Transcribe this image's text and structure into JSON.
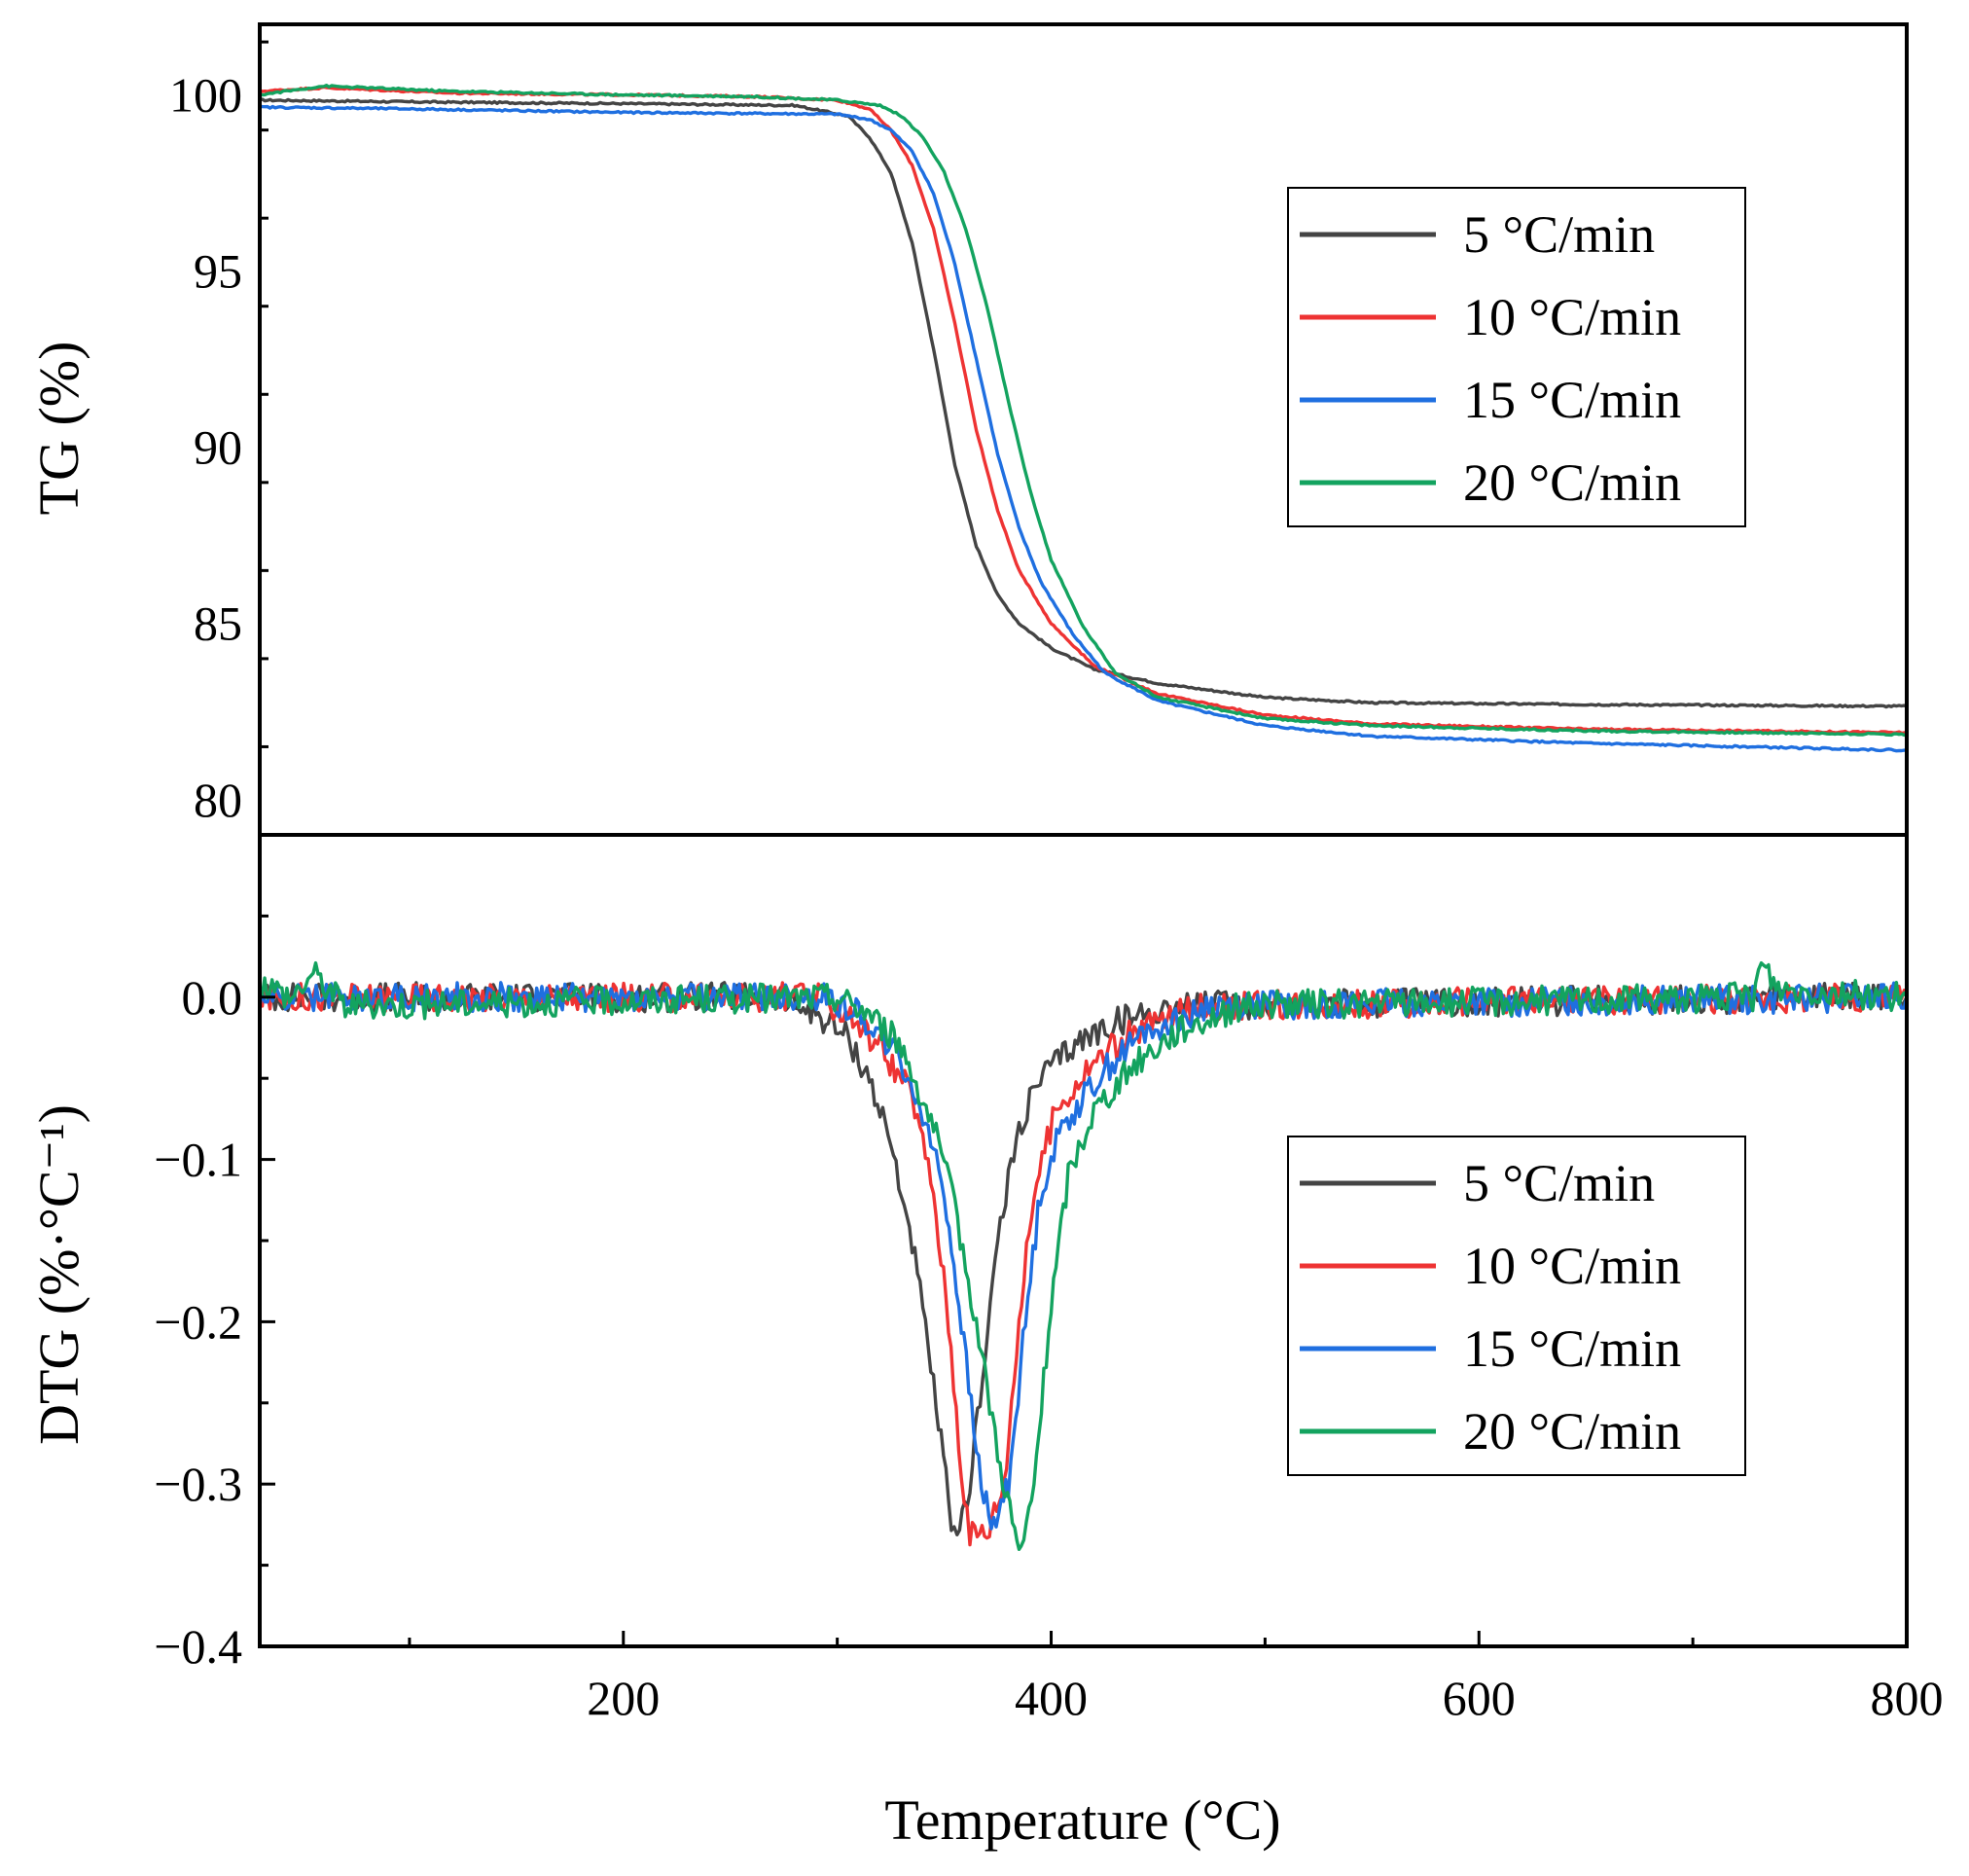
{
  "chart_data": [
    {
      "type": "line",
      "panel": "top",
      "ylabel": "TG (%)",
      "xlabel": "Temperature (°C)",
      "xlim": [
        30,
        800
      ],
      "ylim": [
        79,
        102
      ],
      "yticks": [
        80,
        85,
        90,
        95,
        100
      ],
      "ytick_labels": [
        "80",
        "85",
        "90",
        "95",
        "100"
      ],
      "legend_position": "top-right",
      "series": [
        {
          "name": "5 °C/min",
          "color": "#444444",
          "points": [
            [
              30,
              99.85
            ],
            [
              100,
              99.8
            ],
            [
              200,
              99.75
            ],
            [
              280,
              99.7
            ],
            [
              305,
              99.4
            ],
            [
              315,
              98.8
            ],
            [
              325,
              97.8
            ],
            [
              335,
              95.8
            ],
            [
              345,
              92.8
            ],
            [
              355,
              89.5
            ],
            [
              365,
              87.2
            ],
            [
              375,
              85.8
            ],
            [
              385,
              85.0
            ],
            [
              400,
              84.3
            ],
            [
              420,
              83.7
            ],
            [
              450,
              83.3
            ],
            [
              500,
              82.9
            ],
            [
              550,
              82.75
            ],
            [
              650,
              82.7
            ],
            [
              800,
              82.65
            ]
          ]
        },
        {
          "name": "10 °C/min",
          "color": "#ee3333",
          "points": [
            [
              30,
              100.1
            ],
            [
              60,
              100.2
            ],
            [
              120,
              100.05
            ],
            [
              200,
              100.0
            ],
            [
              260,
              99.95
            ],
            [
              300,
              99.85
            ],
            [
              315,
              99.6
            ],
            [
              325,
              99.0
            ],
            [
              335,
              98.0
            ],
            [
              345,
              96.2
            ],
            [
              355,
              93.5
            ],
            [
              365,
              90.5
            ],
            [
              375,
              88.2
            ],
            [
              385,
              86.5
            ],
            [
              400,
              85.0
            ],
            [
              420,
              83.8
            ],
            [
              450,
              83.0
            ],
            [
              500,
              82.4
            ],
            [
              550,
              82.15
            ],
            [
              650,
              82.0
            ],
            [
              800,
              81.9
            ]
          ]
        },
        {
          "name": "15 °C/min",
          "color": "#1f6fe0",
          "points": [
            [
              30,
              99.65
            ],
            [
              100,
              99.6
            ],
            [
              200,
              99.5
            ],
            [
              300,
              99.45
            ],
            [
              315,
              99.3
            ],
            [
              325,
              99.0
            ],
            [
              335,
              98.4
            ],
            [
              345,
              97.2
            ],
            [
              355,
              95.2
            ],
            [
              365,
              92.5
            ],
            [
              375,
              89.8
            ],
            [
              385,
              87.7
            ],
            [
              395,
              86.2
            ],
            [
              410,
              84.7
            ],
            [
              425,
              83.6
            ],
            [
              450,
              82.8
            ],
            [
              500,
              82.1
            ],
            [
              550,
              81.8
            ],
            [
              650,
              81.6
            ],
            [
              800,
              81.4
            ]
          ]
        },
        {
          "name": "20 °C/min",
          "color": "#13a35f",
          "points": [
            [
              30,
              100.0
            ],
            [
              60,
              100.25
            ],
            [
              120,
              100.1
            ],
            [
              200,
              100.0
            ],
            [
              260,
              99.95
            ],
            [
              300,
              99.85
            ],
            [
              320,
              99.7
            ],
            [
              330,
              99.4
            ],
            [
              340,
              98.8
            ],
            [
              350,
              97.8
            ],
            [
              360,
              96.2
            ],
            [
              370,
              94.0
            ],
            [
              380,
              91.3
            ],
            [
              390,
              88.8
            ],
            [
              400,
              86.8
            ],
            [
              415,
              84.9
            ],
            [
              430,
              83.6
            ],
            [
              450,
              82.9
            ],
            [
              500,
              82.3
            ],
            [
              550,
              82.1
            ],
            [
              650,
              81.95
            ],
            [
              800,
              81.85
            ]
          ]
        }
      ]
    },
    {
      "type": "line",
      "panel": "bottom",
      "ylabel": "DTG (%·°C⁻¹)",
      "xlabel": "Temperature (°C)",
      "xlim": [
        30,
        800
      ],
      "ylim": [
        -0.4,
        0.1
      ],
      "xticks": [
        200,
        400,
        600,
        800
      ],
      "xtick_labels": [
        "200",
        "400",
        "600",
        "800"
      ],
      "yticks": [
        -0.4,
        -0.3,
        -0.2,
        -0.1,
        0.0
      ],
      "ytick_labels": [
        "−0.4",
        "−0.3",
        "−0.2",
        "−0.1",
        "0.0"
      ],
      "legend_position": "bottom-right",
      "series": [
        {
          "name": "5 °C/min",
          "color": "#444444",
          "points": [
            [
              30,
              0.0
            ],
            [
              270,
              0.0
            ],
            [
              290,
              -0.01
            ],
            [
              305,
              -0.025
            ],
            [
              315,
              -0.05
            ],
            [
              325,
              -0.09
            ],
            [
              335,
              -0.15
            ],
            [
              345,
              -0.24
            ],
            [
              352,
              -0.31
            ],
            [
              356,
              -0.34
            ],
            [
              362,
              -0.3
            ],
            [
              368,
              -0.23
            ],
            [
              375,
              -0.15
            ],
            [
              385,
              -0.08
            ],
            [
              395,
              -0.05
            ],
            [
              410,
              -0.03
            ],
            [
              430,
              -0.015
            ],
            [
              460,
              -0.005
            ],
            [
              800,
              0.0
            ]
          ]
        },
        {
          "name": "10 °C/min",
          "color": "#ee3333",
          "points": [
            [
              30,
              0.0
            ],
            [
              290,
              0.0
            ],
            [
              305,
              -0.01
            ],
            [
              320,
              -0.03
            ],
            [
              335,
              -0.06
            ],
            [
              345,
              -0.12
            ],
            [
              352,
              -0.2
            ],
            [
              358,
              -0.29
            ],
            [
              362,
              -0.33
            ],
            [
              370,
              -0.33
            ],
            [
              378,
              -0.3
            ],
            [
              385,
              -0.2
            ],
            [
              392,
              -0.12
            ],
            [
              402,
              -0.07
            ],
            [
              420,
              -0.04
            ],
            [
              440,
              -0.02
            ],
            [
              470,
              -0.005
            ],
            [
              800,
              0.0
            ]
          ]
        },
        {
          "name": "15 °C/min",
          "color": "#1f6fe0",
          "points": [
            [
              30,
              0.0
            ],
            [
              295,
              0.0
            ],
            [
              310,
              -0.01
            ],
            [
              325,
              -0.03
            ],
            [
              340,
              -0.07
            ],
            [
              350,
              -0.12
            ],
            [
              358,
              -0.2
            ],
            [
              365,
              -0.28
            ],
            [
              372,
              -0.33
            ],
            [
              380,
              -0.3
            ],
            [
              388,
              -0.2
            ],
            [
              395,
              -0.12
            ],
            [
              405,
              -0.08
            ],
            [
              425,
              -0.045
            ],
            [
              445,
              -0.02
            ],
            [
              475,
              -0.005
            ],
            [
              800,
              0.0
            ]
          ]
        },
        {
          "name": "20 °C/min",
          "color": "#13a35f",
          "points": [
            [
              30,
              0.01
            ],
            [
              45,
              0.0
            ],
            [
              55,
              0.015
            ],
            [
              70,
              -0.005
            ],
            [
              300,
              0.0
            ],
            [
              315,
              -0.01
            ],
            [
              330,
              -0.03
            ],
            [
              345,
              -0.08
            ],
            [
              355,
              -0.13
            ],
            [
              365,
              -0.2
            ],
            [
              375,
              -0.28
            ],
            [
              383,
              -0.33
            ],
            [
              386,
              -0.345
            ],
            [
              392,
              -0.3
            ],
            [
              400,
              -0.19
            ],
            [
              408,
              -0.11
            ],
            [
              420,
              -0.07
            ],
            [
              440,
              -0.04
            ],
            [
              460,
              -0.02
            ],
            [
              490,
              -0.005
            ],
            [
              728,
              0.0
            ],
            [
              732,
              0.02
            ],
            [
              740,
              0.005
            ],
            [
              800,
              0.0
            ]
          ]
        }
      ]
    }
  ]
}
